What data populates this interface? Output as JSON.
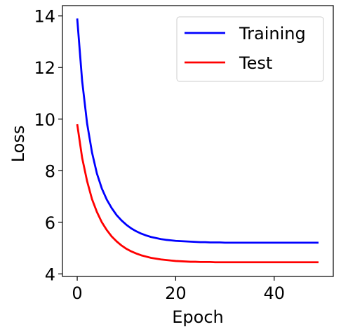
{
  "chart_data": {
    "type": "line",
    "xlabel": "Epoch",
    "ylabel": "Loss",
    "xlim": [
      -3,
      52
    ],
    "ylim": [
      3.9,
      14.4
    ],
    "xticks": [
      "0",
      "20",
      "40"
    ],
    "yticks": [
      "4",
      "6",
      "8",
      "10",
      "12",
      "14"
    ],
    "grid": false,
    "legend_position": "top-right",
    "x": [
      0,
      1,
      2,
      3,
      4,
      5,
      6,
      7,
      8,
      9,
      10,
      11,
      12,
      13,
      14,
      15,
      16,
      17,
      18,
      19,
      20,
      21,
      22,
      23,
      24,
      25,
      26,
      27,
      28,
      29,
      30,
      31,
      32,
      33,
      34,
      35,
      36,
      37,
      38,
      39,
      40,
      41,
      42,
      43,
      44,
      45,
      46,
      47,
      48,
      49
    ],
    "series": [
      {
        "name": "Training",
        "color": "#0000ff",
        "values": [
          13.9,
          11.48,
          9.84,
          8.71,
          7.89,
          7.31,
          6.88,
          6.55,
          6.28,
          6.07,
          5.9,
          5.76,
          5.65,
          5.56,
          5.49,
          5.43,
          5.39,
          5.35,
          5.32,
          5.3,
          5.28,
          5.27,
          5.26,
          5.25,
          5.24,
          5.23,
          5.23,
          5.22,
          5.22,
          5.22,
          5.21,
          5.21,
          5.21,
          5.21,
          5.21,
          5.21,
          5.21,
          5.21,
          5.21,
          5.21,
          5.21,
          5.21,
          5.21,
          5.21,
          5.21,
          5.21,
          5.21,
          5.21,
          5.21,
          5.21
        ]
      },
      {
        "name": "Test",
        "color": "#ff0000",
        "values": [
          9.8,
          8.5,
          7.6,
          6.9,
          6.4,
          6.0,
          5.7,
          5.45,
          5.26,
          5.1,
          4.97,
          4.87,
          4.79,
          4.72,
          4.67,
          4.62,
          4.59,
          4.56,
          4.54,
          4.52,
          4.5,
          4.49,
          4.48,
          4.47,
          4.47,
          4.46,
          4.46,
          4.46,
          4.45,
          4.45,
          4.45,
          4.45,
          4.45,
          4.45,
          4.45,
          4.45,
          4.45,
          4.45,
          4.45,
          4.45,
          4.45,
          4.45,
          4.45,
          4.45,
          4.45,
          4.45,
          4.45,
          4.45,
          4.45,
          4.45
        ]
      }
    ]
  }
}
